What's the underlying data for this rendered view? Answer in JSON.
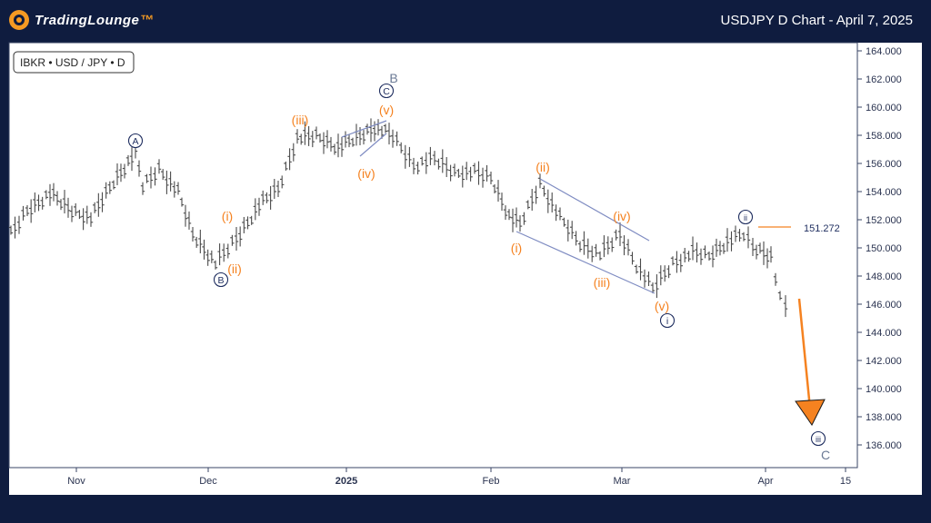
{
  "header": {
    "brand": "TradingLounge",
    "title": "USDJPY D Chart - April 7, 2025"
  },
  "chart_data": {
    "type": "ohlc",
    "symbol_label": "IBKR • USD / JPY • D",
    "price_label": "151.272",
    "y_ticks": [
      "164.000",
      "162.000",
      "160.000",
      "158.000",
      "156.000",
      "154.000",
      "152.000",
      "150.000",
      "148.000",
      "146.000",
      "144.000",
      "142.000",
      "140.000",
      "138.000",
      "136.000"
    ],
    "x_ticks": [
      "Nov",
      "Dec",
      "2025",
      "Feb",
      "Mar",
      "Apr",
      "15"
    ],
    "ylim": [
      134.5,
      164.5
    ],
    "price_line": 151.272,
    "colors": {
      "orange": "#f58220",
      "navy": "#1e2d5f",
      "gray": "#6b7a95"
    },
    "wave_labels": [
      {
        "text": "A",
        "color": "navy",
        "style": "circle"
      },
      {
        "text": "B",
        "color": "navy",
        "style": "circle"
      },
      {
        "text": "C",
        "color": "navy",
        "style": "circle"
      },
      {
        "text": "B",
        "color": "gray",
        "style": "plain"
      },
      {
        "text": "C",
        "color": "gray",
        "style": "plain"
      },
      {
        "text": "i",
        "color": "navy",
        "style": "circle"
      },
      {
        "text": "ii",
        "color": "navy",
        "style": "circle"
      },
      {
        "text": "iii",
        "color": "navy",
        "style": "circle"
      },
      {
        "text": "(i)",
        "color": "orange",
        "style": "plain"
      },
      {
        "text": "(ii)",
        "color": "orange",
        "style": "plain"
      },
      {
        "text": "(iii)",
        "color": "orange",
        "style": "plain"
      },
      {
        "text": "(iv)",
        "color": "orange",
        "style": "plain"
      },
      {
        "text": "(v)",
        "color": "orange",
        "style": "plain"
      },
      {
        "text": "(i)",
        "color": "orange",
        "style": "plain"
      },
      {
        "text": "(ii)",
        "color": "orange",
        "style": "plain"
      },
      {
        "text": "(iii)",
        "color": "orange",
        "style": "plain"
      },
      {
        "text": "(iv)",
        "color": "orange",
        "style": "plain"
      },
      {
        "text": "(v)",
        "color": "orange",
        "style": "plain"
      }
    ]
  }
}
